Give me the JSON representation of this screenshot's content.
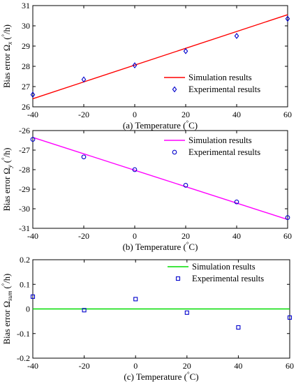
{
  "colors": {
    "panel_a_line": "#ff0000",
    "panel_b_line": "#ff00ff",
    "panel_c_line": "#00dd00",
    "markers": "#0000cc"
  },
  "chart_data": [
    {
      "type": "scatter",
      "panel": "a",
      "caption_prefix": "(a) Temperature (",
      "caption_degree": "°",
      "caption_suffix": "C)",
      "ylabel_main": "Bias error Ω",
      "ylabel_sub": "x",
      "ylabel_degree": "°",
      "ylabel_unit": "/h)",
      "ylabel_paren": "(",
      "xlim": [
        -40,
        60
      ],
      "ylim": [
        26,
        31
      ],
      "xticks": [
        -40,
        -20,
        0,
        20,
        40,
        60
      ],
      "yticks": [
        26,
        27,
        28,
        29,
        30,
        31
      ],
      "legend_position": "bottom-right",
      "series": [
        {
          "name": "Simulation results",
          "kind": "line",
          "x": [
            -40,
            60
          ],
          "y": [
            26.4,
            30.55
          ]
        },
        {
          "name": "Experimental results",
          "kind": "diamond",
          "x": [
            -40,
            -20,
            0,
            20,
            40,
            60
          ],
          "y": [
            26.6,
            27.35,
            28.05,
            28.75,
            29.5,
            30.35
          ]
        }
      ]
    },
    {
      "type": "scatter",
      "panel": "b",
      "caption_prefix": "(b) Temperature (",
      "caption_degree": "°",
      "caption_suffix": "C)",
      "ylabel_main": "Bias error Ω",
      "ylabel_sub": "y",
      "ylabel_degree": "°",
      "ylabel_unit": "/h)",
      "ylabel_paren": "(",
      "xlim": [
        -40,
        60
      ],
      "ylim": [
        -31,
        -26
      ],
      "xticks": [
        -40,
        -20,
        0,
        20,
        40,
        60
      ],
      "yticks": [
        -31,
        -30,
        -29,
        -28,
        -27,
        -26
      ],
      "legend_position": "top-right",
      "series": [
        {
          "name": "Simulation results",
          "kind": "line",
          "x": [
            -40,
            60
          ],
          "y": [
            -26.35,
            -30.55
          ]
        },
        {
          "name": "Experimental results",
          "kind": "circle",
          "x": [
            -40,
            -20,
            0,
            20,
            40,
            60
          ],
          "y": [
            -26.45,
            -27.35,
            -28.0,
            -28.8,
            -29.65,
            -30.45
          ]
        }
      ]
    },
    {
      "type": "scatter",
      "panel": "c",
      "caption_prefix": "(c) Temperature (",
      "caption_degree": "°",
      "caption_suffix": "C)",
      "ylabel_main": "Bias error Ω",
      "ylabel_sub": "sum",
      "ylabel_degree": "°",
      "ylabel_unit": "/h)",
      "ylabel_paren": "(",
      "xlim": [
        -40,
        60
      ],
      "ylim": [
        -0.2,
        0.2
      ],
      "xticks": [
        -40,
        -20,
        0,
        20,
        40,
        60
      ],
      "yticks": [
        -0.2,
        -0.1,
        0,
        0.1,
        0.2
      ],
      "legend_position": "top-right",
      "series": [
        {
          "name": "Simulation results",
          "kind": "line",
          "x": [
            -40,
            60
          ],
          "y": [
            0,
            0
          ]
        },
        {
          "name": "Experimental results",
          "kind": "square",
          "x": [
            -40,
            -20,
            0,
            20,
            40,
            60
          ],
          "y": [
            0.05,
            -0.005,
            0.04,
            -0.015,
            -0.075,
            -0.035
          ]
        }
      ]
    }
  ]
}
